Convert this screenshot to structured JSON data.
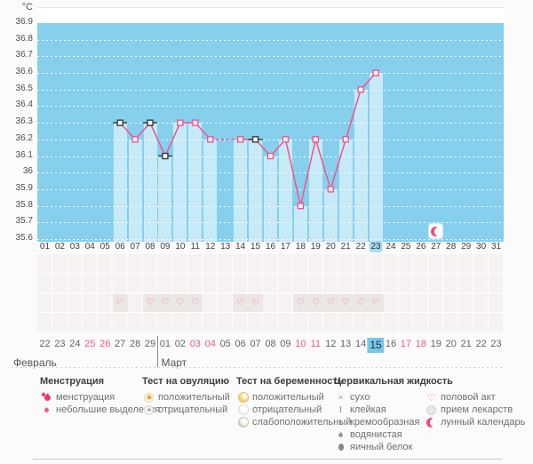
{
  "colors": {
    "accent_pink": "#f2538a",
    "plot_blue": "#86d0ee",
    "column_blue": "#c6eaf8",
    "highlight_blue": "#a6dcf3",
    "today_blue": "#76c8e9",
    "black_marker": "#3b3b3b"
  },
  "chart_data": {
    "type": "line",
    "ylabel": "°C",
    "ylim": [
      35.6,
      37.0
    ],
    "y_ticks": [
      "36.9",
      "36.8",
      "36.7",
      "36.6",
      "36.5",
      "36.4",
      "36.3",
      "36.2",
      "36.1",
      "36",
      "35.9",
      "35.8",
      "35.7",
      "35.6"
    ],
    "x_days": [
      "01",
      "02",
      "03",
      "04",
      "05",
      "06",
      "07",
      "08",
      "09",
      "10",
      "11",
      "12",
      "13",
      "14",
      "15",
      "16",
      "17",
      "18",
      "19",
      "20",
      "21",
      "22",
      "23",
      "24",
      "25",
      "26",
      "27",
      "28",
      "29",
      "30",
      "31"
    ],
    "highlighted_day_index": 22,
    "grid": "dotted-horizontal",
    "legend_position": "bottom",
    "series": [
      {
        "name": "basal-temperature",
        "points": [
          {
            "day": 6,
            "temp": 36.3,
            "marker": "black"
          },
          {
            "day": 7,
            "temp": 36.2,
            "marker": "pink"
          },
          {
            "day": 8,
            "temp": 36.3,
            "marker": "black"
          },
          {
            "day": 9,
            "temp": 36.1,
            "marker": "black"
          },
          {
            "day": 10,
            "temp": 36.3,
            "marker": "pink"
          },
          {
            "day": 11,
            "temp": 36.3,
            "marker": "pink"
          },
          {
            "day": 12,
            "temp": 36.2,
            "marker": "pink"
          },
          {
            "day": 14,
            "temp": 36.2,
            "marker": "pink"
          },
          {
            "day": 15,
            "temp": 36.2,
            "marker": "black"
          },
          {
            "day": 16,
            "temp": 36.1,
            "marker": "pink"
          },
          {
            "day": 17,
            "temp": 36.2,
            "marker": "pink"
          },
          {
            "day": 18,
            "temp": 35.8,
            "marker": "pink"
          },
          {
            "day": 19,
            "temp": 36.2,
            "marker": "pink"
          },
          {
            "day": 20,
            "temp": 35.9,
            "marker": "pink"
          },
          {
            "day": 21,
            "temp": 36.2,
            "marker": "pink"
          },
          {
            "day": 22,
            "temp": 36.5,
            "marker": "pink"
          },
          {
            "day": 23,
            "temp": 36.6,
            "marker": "pink"
          }
        ]
      }
    ],
    "lunar_marker_day": 27,
    "intercourse_days": [
      6,
      8,
      9,
      10,
      11,
      14,
      15,
      18,
      19,
      20,
      21,
      22,
      23
    ]
  },
  "calendar": {
    "dates": [
      "22",
      "23",
      "24",
      "25",
      "26",
      "27",
      "28",
      "29",
      "01",
      "02",
      "03",
      "04",
      "05",
      "06",
      "07",
      "08",
      "09",
      "10",
      "11",
      "12",
      "13",
      "14",
      "15",
      "16",
      "17",
      "18",
      "19",
      "20",
      "21",
      "22",
      "23"
    ],
    "weekend_indices": [
      3,
      4,
      10,
      11,
      17,
      18,
      24,
      25
    ],
    "today_index": 22,
    "march_start_index": 8,
    "months": [
      {
        "label": "Февраль"
      },
      {
        "label": "Март"
      }
    ]
  },
  "legend": {
    "groups": [
      {
        "title": "Менструация",
        "items": [
          {
            "icon": "menstruation-drops-icon",
            "label": "менструация"
          },
          {
            "icon": "small-drop-icon",
            "label": "небольшие выделения"
          }
        ]
      },
      {
        "title": "Тест на овуляцию",
        "items": [
          {
            "icon": "ovulation-positive-icon",
            "label": "положительный"
          },
          {
            "icon": "ovulation-negative-icon",
            "label": "отрицательный"
          }
        ]
      },
      {
        "title": "Тест на беременность",
        "items": [
          {
            "icon": "pregnancy-positive-icon",
            "label": "положительный"
          },
          {
            "icon": "pregnancy-negative-icon",
            "label": "отрицательный"
          },
          {
            "icon": "pregnancy-weak-positive-icon",
            "label": "слабоположительный"
          }
        ]
      },
      {
        "title": "Цервикальная жидкость",
        "items": [
          {
            "icon": "dry-icon",
            "label": "сухо"
          },
          {
            "icon": "sticky-icon",
            "label": "клейкая"
          },
          {
            "icon": "creamy-icon",
            "label": "кремообразная"
          },
          {
            "icon": "watery-icon",
            "label": "водянистая"
          },
          {
            "icon": "eggwhite-icon",
            "label": "яичный белок"
          }
        ]
      },
      {
        "title": "",
        "items": [
          {
            "icon": "intercourse-heart-icon",
            "label": "половой акт"
          },
          {
            "icon": "medication-icon",
            "label": "прием лекарств"
          },
          {
            "icon": "lunar-calendar-icon",
            "label": "лунный календарь"
          }
        ]
      }
    ]
  }
}
